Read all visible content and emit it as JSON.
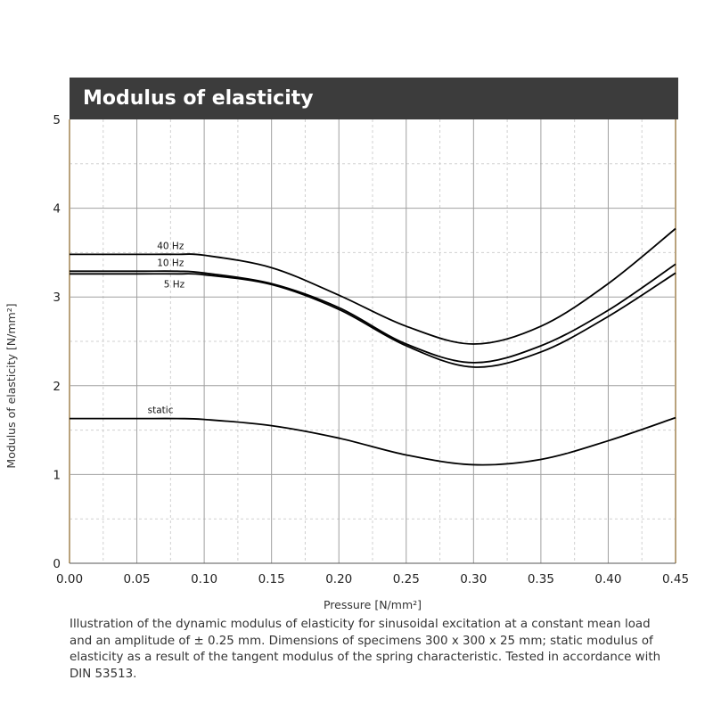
{
  "chart_data": {
    "type": "line",
    "title": "Modulus of elasticity",
    "xlabel": "Pressure [N/mm²]",
    "ylabel": "Modulus of elasticity   [N/mm²]",
    "xlim": [
      0,
      0.45
    ],
    "ylim": [
      0,
      5
    ],
    "x_ticks": [
      "0.00",
      "0.05",
      "0.10",
      "0.15",
      "0.20",
      "0.25",
      "0.30",
      "0.35",
      "0.40",
      "0.45"
    ],
    "y_ticks": [
      "0",
      "1",
      "2",
      "3",
      "4",
      "5"
    ],
    "grid": true,
    "x": [
      0,
      0.05,
      0.08,
      0.1,
      0.15,
      0.2,
      0.25,
      0.3,
      0.35,
      0.4,
      0.45
    ],
    "series": [
      {
        "name": "40 Hz",
        "values": [
          3.48,
          3.48,
          3.48,
          3.47,
          3.33,
          3.02,
          2.67,
          2.47,
          2.67,
          3.15,
          3.77
        ]
      },
      {
        "name": "10 Hz",
        "values": [
          3.29,
          3.29,
          3.29,
          3.27,
          3.15,
          2.88,
          2.47,
          2.26,
          2.45,
          2.85,
          3.37
        ]
      },
      {
        "name": "5 Hz",
        "values": [
          3.26,
          3.26,
          3.26,
          3.25,
          3.14,
          2.86,
          2.45,
          2.21,
          2.38,
          2.78,
          3.27
        ]
      },
      {
        "name": "static",
        "values": [
          1.63,
          1.63,
          1.63,
          1.62,
          1.55,
          1.41,
          1.22,
          1.11,
          1.17,
          1.38,
          1.64
        ]
      }
    ],
    "series_label_x": [
      0.065,
      0.065,
      0.07,
      0.058
    ]
  },
  "caption": "Illustration of the dynamic modulus of elasticity for sinusoidal excitation at a constant mean load and an amplitude of ± 0.25 mm. Dimensions of specimens 300 x 300 x 25 mm; static modulus of elasticity as a result of the tangent modulus of the spring characteristic. Tested in accordance with DIN 53513.",
  "colors": {
    "header_bg": "#3c3c3c",
    "frame": "#b9a27c",
    "grid_major": "#a0a0a0",
    "grid_minor": "#d0d0d0",
    "line": "#000000"
  }
}
